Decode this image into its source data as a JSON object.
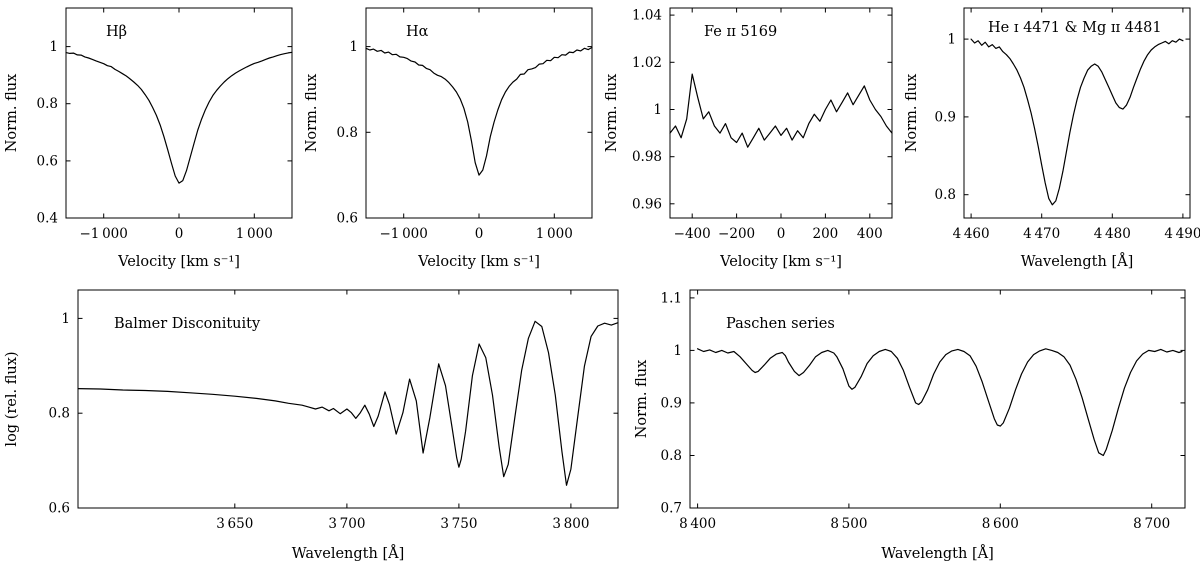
{
  "figure": {
    "background": "#ffffff",
    "line_color": "#000000"
  },
  "chart_data": [
    {
      "type": "line",
      "id": "hbeta",
      "title": "Hβ",
      "xlabel": "Velocity [km s⁻¹]",
      "ylabel": "Norm. flux",
      "xlim": [
        -1500,
        1500
      ],
      "ylim": [
        0.4,
        1.135
      ],
      "grid": false,
      "xticks": {
        "values": [
          -1000,
          0,
          1000
        ],
        "labels": [
          "−1 000",
          "0",
          "1 000"
        ]
      },
      "yticks": {
        "values": [
          0.4,
          0.6,
          0.8,
          1
        ],
        "labels": [
          "0.4",
          "0.6",
          "0.8",
          "1"
        ]
      },
      "x": [
        -1500,
        -1450,
        -1400,
        -1350,
        -1300,
        -1250,
        -1200,
        -1150,
        -1100,
        -1050,
        -1000,
        -950,
        -900,
        -850,
        -800,
        -750,
        -700,
        -650,
        -600,
        -550,
        -500,
        -450,
        -400,
        -350,
        -300,
        -250,
        -200,
        -150,
        -100,
        -50,
        0,
        50,
        100,
        150,
        200,
        250,
        300,
        350,
        400,
        450,
        500,
        550,
        600,
        650,
        700,
        750,
        800,
        850,
        900,
        950,
        1000,
        1050,
        1100,
        1150,
        1200,
        1250,
        1300,
        1350,
        1400,
        1450,
        1500
      ],
      "y": [
        0.979,
        0.976,
        0.977,
        0.971,
        0.97,
        0.964,
        0.96,
        0.955,
        0.95,
        0.945,
        0.94,
        0.933,
        0.93,
        0.92,
        0.913,
        0.905,
        0.897,
        0.887,
        0.876,
        0.864,
        0.85,
        0.832,
        0.812,
        0.787,
        0.759,
        0.725,
        0.685,
        0.639,
        0.591,
        0.547,
        0.522,
        0.531,
        0.566,
        0.614,
        0.662,
        0.708,
        0.746,
        0.779,
        0.806,
        0.829,
        0.847,
        0.862,
        0.876,
        0.888,
        0.898,
        0.907,
        0.915,
        0.922,
        0.929,
        0.935,
        0.941,
        0.945,
        0.95,
        0.955,
        0.96,
        0.964,
        0.968,
        0.972,
        0.975,
        0.978,
        0.98
      ]
    },
    {
      "type": "line",
      "id": "halpha",
      "title": "Hα",
      "xlabel": "Velocity [km s⁻¹]",
      "ylabel": "Norm. flux",
      "xlim": [
        -1500,
        1500
      ],
      "ylim": [
        0.6,
        1.09
      ],
      "grid": false,
      "xticks": {
        "values": [
          -1000,
          0,
          1000
        ],
        "labels": [
          "−1 000",
          "0",
          "1 000"
        ]
      },
      "yticks": {
        "values": [
          0.6,
          0.8,
          1
        ],
        "labels": [
          "0.6",
          "0.8",
          "1"
        ]
      },
      "x": [
        -1500,
        -1450,
        -1400,
        -1350,
        -1300,
        -1250,
        -1200,
        -1150,
        -1100,
        -1050,
        -1000,
        -950,
        -900,
        -850,
        -800,
        -750,
        -700,
        -650,
        -600,
        -550,
        -500,
        -450,
        -400,
        -350,
        -300,
        -250,
        -200,
        -150,
        -100,
        -50,
        0,
        50,
        100,
        150,
        200,
        250,
        300,
        350,
        400,
        450,
        500,
        550,
        600,
        650,
        700,
        750,
        800,
        850,
        900,
        950,
        1000,
        1050,
        1100,
        1150,
        1200,
        1250,
        1300,
        1350,
        1400,
        1450,
        1500
      ],
      "y": [
        0.996,
        0.992,
        0.994,
        0.989,
        0.991,
        0.985,
        0.987,
        0.981,
        0.982,
        0.976,
        0.975,
        0.972,
        0.966,
        0.964,
        0.957,
        0.956,
        0.949,
        0.946,
        0.938,
        0.933,
        0.93,
        0.924,
        0.916,
        0.906,
        0.894,
        0.878,
        0.856,
        0.824,
        0.779,
        0.729,
        0.7,
        0.712,
        0.745,
        0.79,
        0.824,
        0.852,
        0.876,
        0.894,
        0.907,
        0.917,
        0.924,
        0.935,
        0.936,
        0.946,
        0.948,
        0.951,
        0.959,
        0.96,
        0.968,
        0.967,
        0.975,
        0.974,
        0.981,
        0.98,
        0.987,
        0.986,
        0.992,
        0.99,
        0.996,
        0.993,
        0.998
      ]
    },
    {
      "type": "line",
      "id": "feii5169",
      "title": "Fe ɪɪ 5169",
      "xlabel": "Velocity [km s⁻¹]",
      "ylabel": "Norm. flux",
      "xlim": [
        -500,
        500
      ],
      "ylim": [
        0.954,
        1.043
      ],
      "grid": false,
      "xticks": {
        "values": [
          -400,
          -200,
          0,
          200,
          400
        ],
        "labels": [
          "−400",
          "−200",
          "0",
          "200",
          "400"
        ]
      },
      "yticks": {
        "values": [
          0.96,
          0.98,
          1,
          1.02,
          1.04
        ],
        "labels": [
          "0.96",
          "0.98",
          "1",
          "1.02",
          "1.04"
        ]
      },
      "x": [
        -500,
        -475,
        -450,
        -425,
        -400,
        -375,
        -350,
        -325,
        -300,
        -275,
        -250,
        -225,
        -200,
        -175,
        -150,
        -125,
        -100,
        -75,
        -50,
        -25,
        0,
        25,
        50,
        75,
        100,
        125,
        150,
        175,
        200,
        225,
        250,
        275,
        300,
        325,
        350,
        375,
        400,
        425,
        450,
        475,
        500
      ],
      "y": [
        0.99,
        0.993,
        0.988,
        0.996,
        1.015,
        1.005,
        0.996,
        0.999,
        0.993,
        0.99,
        0.994,
        0.988,
        0.986,
        0.99,
        0.984,
        0.988,
        0.992,
        0.987,
        0.99,
        0.993,
        0.989,
        0.992,
        0.987,
        0.991,
        0.988,
        0.994,
        0.998,
        0.995,
        1.0,
        1.004,
        0.999,
        1.003,
        1.007,
        1.002,
        1.006,
        1.01,
        1.004,
        1.0,
        0.997,
        0.993,
        0.99
      ]
    },
    {
      "type": "line",
      "id": "hei-mgii",
      "title": "He ɪ 4471 & Mg ɪɪ 4481",
      "xlabel": "Wavelength [Å]",
      "ylabel": "Norm. flux",
      "xlim": [
        4459,
        4491
      ],
      "ylim": [
        0.77,
        1.04
      ],
      "grid": false,
      "xticks": {
        "values": [
          4460,
          4470,
          4480,
          4490
        ],
        "labels": [
          "4 460",
          "4 470",
          "4 480",
          "4 490"
        ]
      },
      "yticks": {
        "values": [
          0.8,
          0.9,
          1
        ],
        "labels": [
          "0.8",
          "0.9",
          "1"
        ]
      },
      "x": [
        4460,
        4460.5,
        4461,
        4461.5,
        4462,
        4462.5,
        4463,
        4463.5,
        4464,
        4464.5,
        4465,
        4465.5,
        4466,
        4466.5,
        4467,
        4467.5,
        4468,
        4468.5,
        4469,
        4469.5,
        4470,
        4470.5,
        4471,
        4471.5,
        4472,
        4472.5,
        4473,
        4473.5,
        4474,
        4474.5,
        4475,
        4475.5,
        4476,
        4476.5,
        4477,
        4477.5,
        4478,
        4478.5,
        4479,
        4479.5,
        4480,
        4480.5,
        4481,
        4481.5,
        4482,
        4482.5,
        4483,
        4483.5,
        4484,
        4484.5,
        4485,
        4485.5,
        4486,
        4486.5,
        4487,
        4487.5,
        4488,
        4488.5,
        4489,
        4489.5,
        4490
      ],
      "y": [
        1.0,
        0.995,
        0.998,
        0.992,
        0.996,
        0.99,
        0.993,
        0.988,
        0.99,
        0.984,
        0.98,
        0.975,
        0.968,
        0.96,
        0.95,
        0.938,
        0.922,
        0.905,
        0.885,
        0.862,
        0.838,
        0.815,
        0.795,
        0.787,
        0.792,
        0.808,
        0.83,
        0.855,
        0.88,
        0.903,
        0.922,
        0.938,
        0.95,
        0.96,
        0.965,
        0.968,
        0.965,
        0.958,
        0.948,
        0.938,
        0.928,
        0.918,
        0.912,
        0.91,
        0.915,
        0.925,
        0.938,
        0.95,
        0.962,
        0.972,
        0.98,
        0.986,
        0.99,
        0.993,
        0.995,
        0.997,
        0.994,
        0.998,
        0.996,
        1.0,
        0.998
      ]
    },
    {
      "type": "line",
      "id": "balmer",
      "title": "Balmer Disconituity",
      "xlabel": "Wavelength [Å]",
      "ylabel": "log (rel. flux)",
      "xlim": [
        3580,
        3821
      ],
      "ylim": [
        0.6,
        1.06
      ],
      "grid": false,
      "xticks": {
        "values": [
          3650,
          3700,
          3750,
          3800
        ],
        "labels": [
          "3 650",
          "3 700",
          "3 750",
          "3 800"
        ]
      },
      "yticks": {
        "values": [
          0.6,
          0.8,
          1
        ],
        "labels": [
          "0.6",
          "0.8",
          "1"
        ]
      },
      "x": [
        3580,
        3590,
        3600,
        3610,
        3620,
        3630,
        3640,
        3650,
        3660,
        3668,
        3674,
        3680,
        3683,
        3686,
        3689,
        3692,
        3694,
        3697,
        3700,
        3702,
        3704,
        3706,
        3708,
        3710,
        3712,
        3714,
        3717,
        3719,
        3722,
        3725,
        3728,
        3731,
        3734,
        3737,
        3741,
        3744,
        3747,
        3749,
        3750,
        3751,
        3753,
        3756,
        3759,
        3762,
        3765,
        3768,
        3770,
        3772,
        3775,
        3778,
        3781,
        3784,
        3787,
        3790,
        3793,
        3796,
        3798,
        3800,
        3803,
        3806,
        3809,
        3812,
        3815,
        3818,
        3821
      ],
      "y": [
        0.852,
        0.851,
        0.849,
        0.848,
        0.846,
        0.843,
        0.84,
        0.836,
        0.831,
        0.826,
        0.821,
        0.817,
        0.813,
        0.809,
        0.813,
        0.805,
        0.81,
        0.799,
        0.809,
        0.801,
        0.789,
        0.801,
        0.817,
        0.798,
        0.772,
        0.794,
        0.845,
        0.818,
        0.756,
        0.801,
        0.872,
        0.826,
        0.716,
        0.79,
        0.904,
        0.858,
        0.768,
        0.706,
        0.686,
        0.703,
        0.762,
        0.879,
        0.946,
        0.917,
        0.838,
        0.728,
        0.666,
        0.692,
        0.792,
        0.891,
        0.958,
        0.994,
        0.983,
        0.928,
        0.838,
        0.718,
        0.648,
        0.682,
        0.792,
        0.899,
        0.962,
        0.984,
        0.99,
        0.986,
        0.991
      ]
    },
    {
      "type": "line",
      "id": "paschen",
      "title": "Paschen series",
      "xlabel": "Wavelength [Å]",
      "ylabel": "Norm. flux",
      "xlim": [
        8395,
        8722
      ],
      "ylim": [
        0.7,
        1.115
      ],
      "grid": false,
      "xticks": {
        "values": [
          8400,
          8500,
          8600,
          8700
        ],
        "labels": [
          "8 400",
          "8 500",
          "8 600",
          "8 700"
        ]
      },
      "yticks": {
        "values": [
          0.7,
          0.8,
          0.9,
          1,
          1.1
        ],
        "labels": [
          "0.7",
          "0.8",
          "0.9",
          "1",
          "1.1"
        ]
      },
      "x": [
        8400,
        8404,
        8408,
        8412,
        8416,
        8420,
        8424,
        8428,
        8432,
        8436,
        8438,
        8440,
        8444,
        8448,
        8452,
        8456,
        8458,
        8460,
        8464,
        8467,
        8470,
        8474,
        8478,
        8482,
        8486,
        8490,
        8492,
        8496,
        8500,
        8502,
        8504,
        8508,
        8512,
        8516,
        8520,
        8524,
        8528,
        8532,
        8536,
        8540,
        8544,
        8546,
        8548,
        8552,
        8556,
        8560,
        8564,
        8568,
        8572,
        8576,
        8580,
        8584,
        8588,
        8592,
        8596,
        8598,
        8600,
        8602,
        8606,
        8610,
        8614,
        8618,
        8622,
        8626,
        8630,
        8634,
        8638,
        8642,
        8646,
        8650,
        8654,
        8658,
        8662,
        8665,
        8668,
        8670,
        8674,
        8678,
        8682,
        8686,
        8690,
        8694,
        8698,
        8702,
        8706,
        8710,
        8714,
        8718,
        8720
      ],
      "y": [
        1.003,
        0.998,
        1.001,
        0.996,
        1.0,
        0.995,
        0.998,
        0.988,
        0.975,
        0.962,
        0.958,
        0.96,
        0.972,
        0.985,
        0.993,
        0.996,
        0.99,
        0.978,
        0.96,
        0.952,
        0.958,
        0.972,
        0.988,
        0.996,
        1.0,
        0.995,
        0.988,
        0.965,
        0.932,
        0.926,
        0.93,
        0.95,
        0.975,
        0.99,
        0.998,
        1.002,
        0.998,
        0.985,
        0.962,
        0.93,
        0.9,
        0.897,
        0.902,
        0.925,
        0.955,
        0.978,
        0.992,
        0.999,
        1.002,
        0.998,
        0.99,
        0.97,
        0.94,
        0.905,
        0.87,
        0.858,
        0.856,
        0.862,
        0.89,
        0.925,
        0.955,
        0.978,
        0.992,
        0.999,
        1.003,
        1.0,
        0.996,
        0.988,
        0.972,
        0.945,
        0.91,
        0.87,
        0.83,
        0.805,
        0.8,
        0.812,
        0.848,
        0.89,
        0.928,
        0.958,
        0.98,
        0.993,
        1.0,
        0.998,
        1.002,
        0.997,
        1.0,
        0.996,
        0.998
      ]
    }
  ]
}
